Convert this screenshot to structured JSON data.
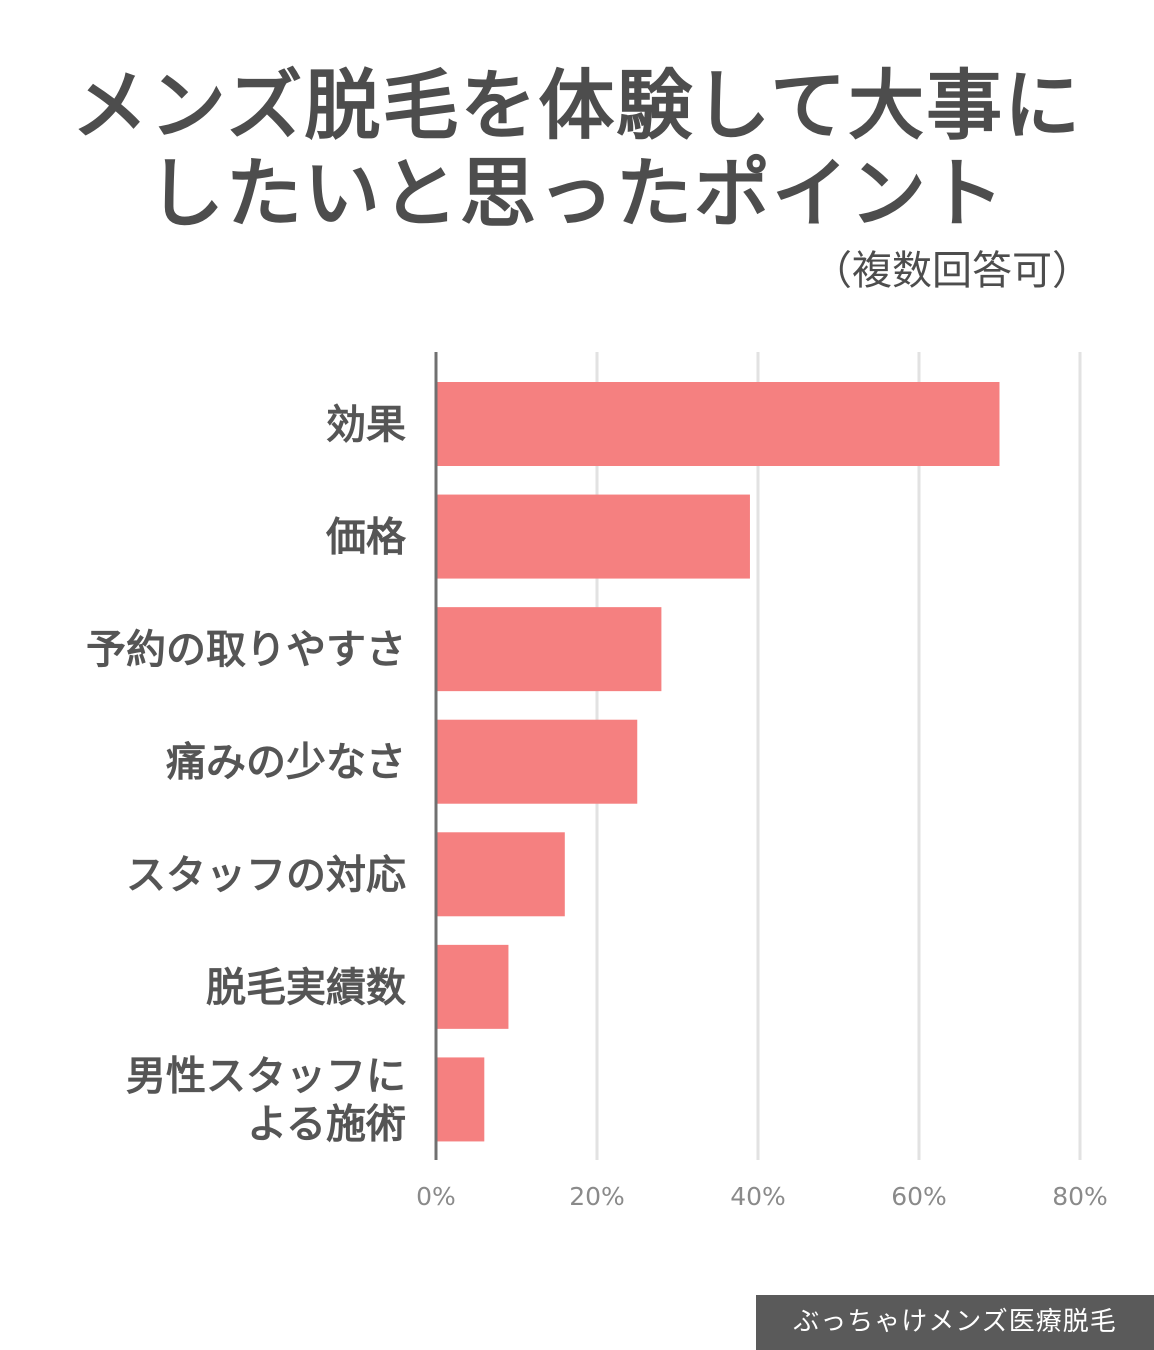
{
  "title_lines": [
    "メンズ脱毛を体験して大事に",
    "したいと思ったポイント"
  ],
  "subtitle": "（複数回答可）",
  "footer": "ぶっちゃけメンズ医療脱毛",
  "colors": {
    "bar": "#f58080",
    "axis": "#707070",
    "grid": "#e2e2e2",
    "label": "#555555",
    "tick": "#8a8a8a"
  },
  "chart_data": {
    "type": "bar",
    "orientation": "horizontal",
    "categories": [
      [
        "効果"
      ],
      [
        "価格"
      ],
      [
        "予約の取りやすさ"
      ],
      [
        "痛みの少なさ"
      ],
      [
        "スタッフの対応"
      ],
      [
        "脱毛実績数"
      ],
      [
        "男性スタッフに",
        "よる施術"
      ]
    ],
    "values": [
      70,
      39,
      28,
      25,
      16,
      9,
      6
    ],
    "xlim": [
      0,
      80
    ],
    "xticks": [
      "0%",
      "20%",
      "40%",
      "60%",
      "80%"
    ],
    "grid": true
  }
}
